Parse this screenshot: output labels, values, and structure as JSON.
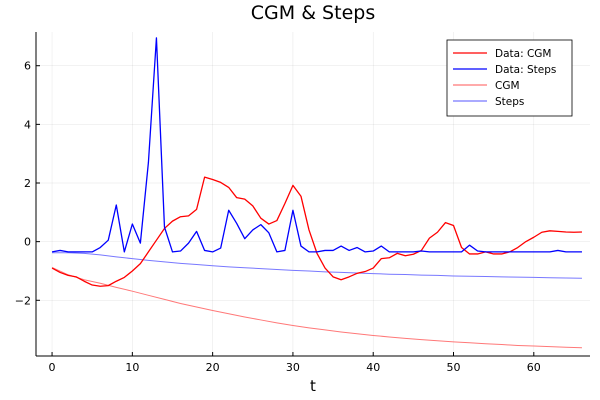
{
  "chart_data": {
    "type": "line",
    "title": "CGM & Steps",
    "xlabel": "t",
    "ylabel": "",
    "xlim": [
      -2,
      67
    ],
    "ylim": [
      -3.9,
      7.15
    ],
    "xticks": [
      0,
      10,
      20,
      30,
      40,
      50,
      60
    ],
    "yticks": [
      -2,
      0,
      2,
      4,
      6
    ],
    "grid": true,
    "legend_position": "top-right",
    "series": [
      {
        "name": "Data: CGM",
        "color": "#ff0000",
        "x": [
          0,
          1,
          2,
          3,
          4,
          5,
          6,
          7,
          8,
          9,
          10,
          11,
          12,
          13,
          14,
          15,
          16,
          17,
          18,
          19,
          20,
          21,
          22,
          23,
          24,
          25,
          26,
          27,
          28,
          29,
          30,
          31,
          32,
          33,
          34,
          35,
          36,
          37,
          38,
          39,
          40,
          41,
          42,
          43,
          44,
          45,
          46,
          47,
          48,
          49,
          50,
          51,
          52,
          53,
          54,
          55,
          56,
          57,
          58,
          59,
          60,
          61,
          62,
          63,
          64,
          65,
          66
        ],
        "y": [
          -0.9,
          -1.05,
          -1.15,
          -1.2,
          -1.35,
          -1.48,
          -1.52,
          -1.5,
          -1.35,
          -1.22,
          -1.0,
          -0.75,
          -0.35,
          0.05,
          0.45,
          0.7,
          0.85,
          0.88,
          1.1,
          2.2,
          2.12,
          2.02,
          1.85,
          1.5,
          1.45,
          1.22,
          0.8,
          0.6,
          0.72,
          1.3,
          1.92,
          1.55,
          0.4,
          -0.4,
          -0.9,
          -1.2,
          -1.3,
          -1.2,
          -1.08,
          -1.02,
          -0.9,
          -0.58,
          -0.55,
          -0.4,
          -0.48,
          -0.43,
          -0.3,
          0.12,
          0.32,
          0.65,
          0.55,
          -0.2,
          -0.42,
          -0.42,
          -0.35,
          -0.42,
          -0.42,
          -0.35,
          -0.2,
          0.0,
          0.15,
          0.32,
          0.37,
          0.35,
          0.33,
          0.32,
          0.33
        ]
      },
      {
        "name": "Data: Steps",
        "color": "#0000ff",
        "x": [
          0,
          1,
          2,
          3,
          4,
          5,
          6,
          7,
          8,
          9,
          10,
          11,
          12,
          13,
          14,
          15,
          16,
          17,
          18,
          19,
          20,
          21,
          22,
          23,
          24,
          25,
          26,
          27,
          28,
          29,
          30,
          31,
          32,
          33,
          34,
          35,
          36,
          37,
          38,
          39,
          40,
          41,
          42,
          43,
          44,
          45,
          46,
          47,
          48,
          49,
          50,
          51,
          52,
          53,
          54,
          55,
          56,
          57,
          58,
          59,
          60,
          61,
          62,
          63,
          64,
          65,
          66
        ],
        "y": [
          -0.35,
          -0.3,
          -0.35,
          -0.35,
          -0.35,
          -0.35,
          -0.2,
          0.05,
          1.25,
          -0.35,
          0.6,
          -0.05,
          2.7,
          6.95,
          0.5,
          -0.35,
          -0.32,
          -0.05,
          0.35,
          -0.3,
          -0.35,
          -0.22,
          1.07,
          0.62,
          0.1,
          0.4,
          0.58,
          0.3,
          -0.35,
          -0.3,
          1.07,
          -0.15,
          -0.35,
          -0.35,
          -0.3,
          -0.3,
          -0.15,
          -0.3,
          -0.2,
          -0.35,
          -0.32,
          -0.15,
          -0.35,
          -0.35,
          -0.35,
          -0.35,
          -0.32,
          -0.35,
          -0.35,
          -0.35,
          -0.35,
          -0.35,
          -0.12,
          -0.32,
          -0.35,
          -0.35,
          -0.35,
          -0.35,
          -0.35,
          -0.35,
          -0.35,
          -0.35,
          -0.35,
          -0.3,
          -0.35,
          -0.35,
          -0.35
        ]
      },
      {
        "name": "CGM",
        "color": "#ff7878",
        "x": [
          0,
          2,
          4,
          6,
          8,
          10,
          12,
          14,
          16,
          18,
          20,
          22,
          24,
          26,
          28,
          30,
          32,
          34,
          36,
          38,
          40,
          42,
          44,
          46,
          48,
          50,
          52,
          54,
          56,
          58,
          60,
          62,
          64,
          66
        ],
        "y": [
          -0.88,
          -1.13,
          -1.3,
          -1.42,
          -1.56,
          -1.69,
          -1.83,
          -1.97,
          -2.11,
          -2.23,
          -2.35,
          -2.46,
          -2.57,
          -2.67,
          -2.77,
          -2.86,
          -2.94,
          -3.01,
          -3.08,
          -3.14,
          -3.2,
          -3.25,
          -3.3,
          -3.34,
          -3.38,
          -3.42,
          -3.45,
          -3.48,
          -3.51,
          -3.54,
          -3.56,
          -3.58,
          -3.6,
          -3.62
        ]
      },
      {
        "name": "Steps",
        "color": "#7878ff",
        "x": [
          0,
          2,
          4,
          6,
          8,
          10,
          12,
          14,
          16,
          18,
          20,
          22,
          24,
          26,
          28,
          30,
          32,
          34,
          36,
          38,
          40,
          42,
          44,
          46,
          48,
          50,
          52,
          54,
          56,
          58,
          60,
          62,
          64,
          66
        ],
        "y": [
          -0.38,
          -0.38,
          -0.4,
          -0.45,
          -0.52,
          -0.58,
          -0.64,
          -0.69,
          -0.74,
          -0.78,
          -0.82,
          -0.86,
          -0.89,
          -0.92,
          -0.95,
          -0.98,
          -1.0,
          -1.03,
          -1.05,
          -1.07,
          -1.09,
          -1.11,
          -1.12,
          -1.14,
          -1.15,
          -1.17,
          -1.18,
          -1.19,
          -1.2,
          -1.21,
          -1.22,
          -1.23,
          -1.24,
          -1.25
        ]
      }
    ]
  }
}
